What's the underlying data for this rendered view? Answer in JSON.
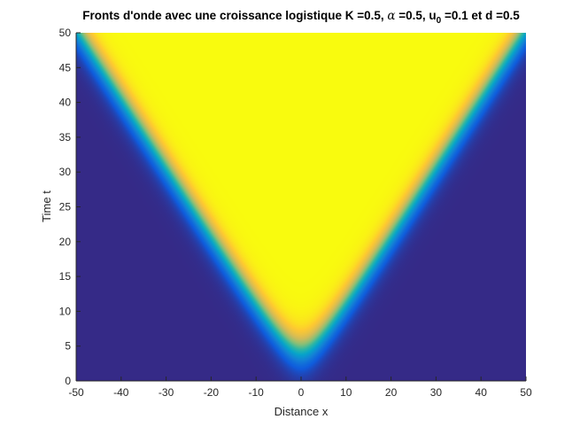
{
  "chart_data": {
    "type": "heatmap",
    "title": {
      "prefix": "Fronts d'onde avec une croissance logistique K =0.5, ",
      "alpha_symbol": "α",
      "alpha_text": " =0.5, u",
      "u_subscript": "0",
      "suffix": " =0.1 et d =0.5"
    },
    "xlabel": "Distance x",
    "ylabel": "Time t",
    "xlim": [
      -50,
      50
    ],
    "ylim": [
      0,
      50
    ],
    "x_ticks": [
      -50,
      -40,
      -30,
      -20,
      -10,
      0,
      10,
      20,
      30,
      40,
      50
    ],
    "y_ticks": [
      0,
      5,
      10,
      15,
      20,
      25,
      30,
      35,
      40,
      45,
      50
    ],
    "grid": false,
    "colormap": "parula",
    "colormap_stops": [
      "#352a87",
      "#0f5cdd",
      "#1481d6",
      "#06a4ca",
      "#2eb7a4",
      "#87bf77",
      "#d1bb59",
      "#fec832",
      "#f9fb0e"
    ],
    "value_range": [
      0,
      0.5
    ],
    "front_model": {
      "description_values": {
        "K": 0.5,
        "alpha": 0.5,
        "u0": 0.1,
        "d": 0.5
      },
      "front_center_t_at_x0": 4.5,
      "front_speed": 1.0,
      "front_width": 2.6
    }
  }
}
